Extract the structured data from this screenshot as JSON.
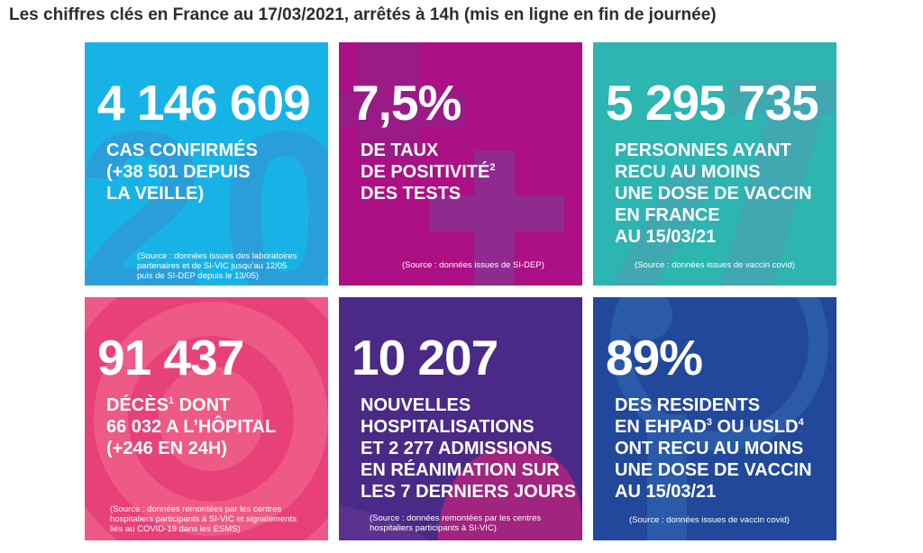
{
  "title": "Les chiffres clés en France au 17/03/2021, arrêtés à 14h (mis en ligne en fin de journée)",
  "tiles": [
    {
      "number": "4 146 609",
      "lines": [
        "CAS CONFIRMÉS",
        "(+38 501 DEPUIS",
        "LA VEILLE)"
      ],
      "source": [
        "(Source : données issues des laboratoires",
        "partenaires et de SI-VIC jusqu’au 12/05",
        "puis de SI-DEP depuis le 13/05)"
      ],
      "color": "#18b3e6"
    },
    {
      "number": "7,5%",
      "lines": [
        "DE TAUX",
        "DE POSITIVITÉ",
        "DES TESTS"
      ],
      "sup": "2",
      "source": [
        "(Source : données issues de SI-DEP)"
      ],
      "color": "#ad0f84"
    },
    {
      "number": "5 295 735",
      "lines": [
        "PERSONNES AYANT",
        "RECU AU MOINS",
        "UNE DOSE DE VACCIN",
        "EN FRANCE",
        "AU 15/03/21"
      ],
      "source": [
        "(Source : données issues de vaccin covid)"
      ],
      "color": "#2cb5b1"
    },
    {
      "number": "91 437",
      "line1_a": "DÉCÈS",
      "line1_sup": "1",
      "line1_b": " DONT",
      "lines": [
        "66 032 A L’HÔPITAL",
        "(+246 EN 24H)"
      ],
      "source": [
        "(Source : données remontées par les centres",
        "hospitaliers participants à SI-VIC et signalements",
        "liés au COVID-19 dans les ESMS)"
      ],
      "color": "#ee5a86"
    },
    {
      "number": "10 207",
      "lines": [
        "NOUVELLES",
        "HOSPITALISATIONS",
        "ET 2 277 ADMISSIONS",
        "EN RÉANIMATION SUR",
        "LES 7 DERNIERS JOURS"
      ],
      "source": [
        "(Source : données remontées par les centres",
        "hospitaliers participants à SI-VIC)"
      ],
      "color": "#4a2a86"
    },
    {
      "number": "89%",
      "line1": "DES RESIDENTS",
      "line2_a": "EN EHPAD",
      "line2_sup1": "3",
      "line2_b": " OU USLD",
      "line2_sup2": "4",
      "lines": [
        "ONT RECU AU MOINS",
        "UNE DOSE DE VACCIN",
        "AU 15/03/21"
      ],
      "source": [
        "(Source : données issues de vaccin covid)"
      ],
      "color": "#21489a"
    }
  ]
}
